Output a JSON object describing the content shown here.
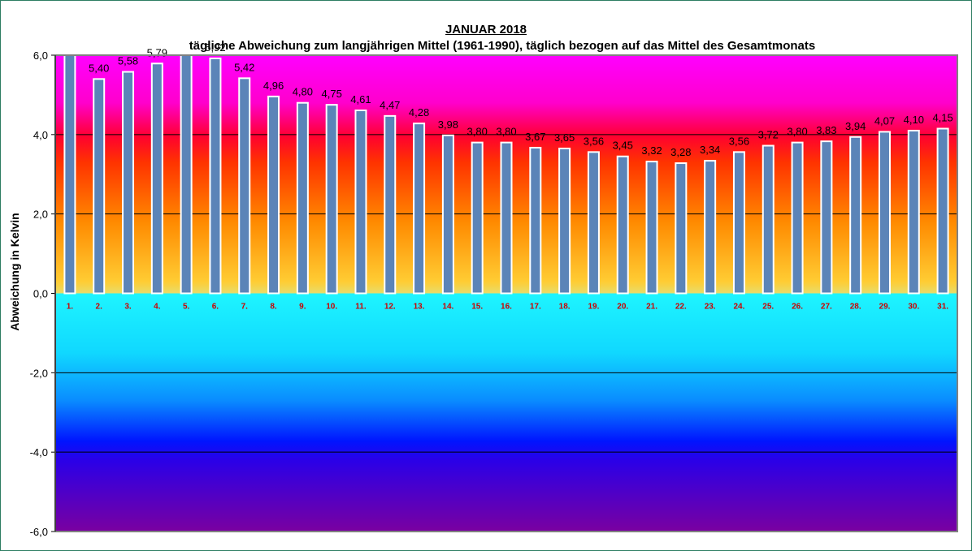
{
  "chart_data": {
    "type": "bar",
    "title": "JANUAR 2018",
    "subtitle": "tägliche Abweichung zum langjährigen Mittel (1961-1990), täglich bezogen auf das Mittel des Gesamtmonats",
    "xlabel": "",
    "ylabel": "Abweichung in Kelvin",
    "ylim": [
      -6,
      6
    ],
    "yticks": [
      "6,0",
      "4,0",
      "2,0",
      "0,0",
      "-2,0",
      "-4,0",
      "-6,0"
    ],
    "grid": true,
    "categories": [
      "1.",
      "2.",
      "3.",
      "4.",
      "5.",
      "6.",
      "7.",
      "8.",
      "9.",
      "10.",
      "11.",
      "12.",
      "13.",
      "14.",
      "15.",
      "16.",
      "17.",
      "18.",
      "19.",
      "20.",
      "21.",
      "22.",
      "23.",
      "24.",
      "25.",
      "26.",
      "27.",
      "28.",
      "29.",
      "30.",
      "31."
    ],
    "values": [
      6.1,
      5.4,
      5.58,
      5.79,
      6.1,
      5.92,
      5.42,
      4.96,
      4.8,
      4.75,
      4.61,
      4.47,
      4.28,
      3.98,
      3.8,
      3.8,
      3.67,
      3.65,
      3.56,
      3.45,
      3.32,
      3.28,
      3.34,
      3.56,
      3.72,
      3.8,
      3.83,
      3.94,
      4.07,
      4.1,
      4.15
    ],
    "data_labels": [
      "",
      "5,40",
      "5,58",
      "5,79",
      "",
      "5,92",
      "5,42",
      "4,96",
      "4,80",
      "4,75",
      "4,61",
      "4,47",
      "4,28",
      "3,98",
      "3,80",
      "3,80",
      "3,67",
      "3,65",
      "3,56",
      "3,45",
      "3,32",
      "3,28",
      "3,34",
      "3,56",
      "3,72",
      "3,80",
      "3,83",
      "3,94",
      "4,07",
      "4,10",
      "4,15"
    ],
    "colors": {
      "bar": "#5b84b8",
      "bar_border": "#ffffff",
      "category_label": "#cc0000",
      "positive_band_top": "#ff00ff",
      "positive_band_mid": "#ff3b00",
      "positive_band_low": "#ffcc33",
      "negative_band_top": "#1ef5ff",
      "negative_band_mid": "#0015ff",
      "negative_band_bottom": "#7a00a0"
    }
  }
}
